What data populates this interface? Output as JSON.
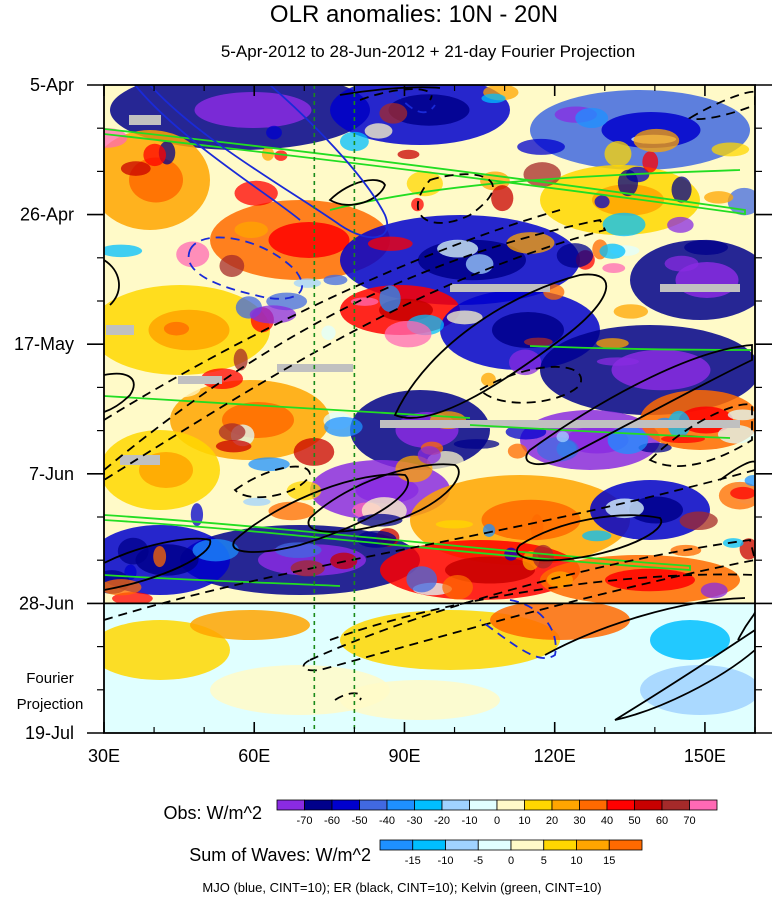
{
  "chart_data": {
    "type": "heatmap",
    "title": "OLR anomalies: 10N - 20N",
    "subtitle": "5-Apr-2012 to 28-Jun-2012 + 21-day Fourier Projection",
    "x_ticks": [
      "30E",
      "60E",
      "90E",
      "120E",
      "150E"
    ],
    "x_tick_values": [
      30,
      60,
      90,
      120,
      150
    ],
    "xlim": [
      30,
      160
    ],
    "y_ticks": [
      "5-Apr",
      "26-Apr",
      "17-May",
      "7-Jun",
      "28-Jun",
      "19-Jul"
    ],
    "y_tick_days": [
      0,
      21,
      42,
      63,
      84,
      105
    ],
    "ylim_days": [
      0,
      105
    ],
    "projection_boundary_day": 84,
    "projection_label": [
      "Fourier",
      "Projection"
    ],
    "reference_longitudes": [
      72,
      80
    ],
    "obs_colorbar": {
      "label": "Obs: W/m^2",
      "levels": [
        -70,
        -60,
        -50,
        -40,
        -30,
        -20,
        -10,
        0,
        10,
        20,
        30,
        40,
        50,
        60,
        70
      ],
      "colors": [
        "#8a2be2",
        "#00008b",
        "#0000cd",
        "#4169e1",
        "#1e90ff",
        "#00bfff",
        "#a0d2ff",
        "#e0ffff",
        "#fffac8",
        "#ffd700",
        "#ffa500",
        "#ff6a00",
        "#ff0000",
        "#c80000",
        "#a52a2a",
        "#ff69b4"
      ]
    },
    "waves_colorbar": {
      "label": "Sum of Waves: W/m^2",
      "levels": [
        -15,
        -10,
        -5,
        0,
        5,
        10,
        15
      ],
      "colors": [
        "#1e90ff",
        "#00bfff",
        "#a0d2ff",
        "#e0ffff",
        "#fffac8",
        "#ffd700",
        "#ffa500",
        "#ff6a00"
      ]
    },
    "contour_series": [
      {
        "name": "MJO",
        "color": "blue",
        "cint": 10
      },
      {
        "name": "ER",
        "color": "black",
        "cint": 10
      },
      {
        "name": "Kelvin",
        "color": "green",
        "cint": 10
      }
    ],
    "footnote": "MJO (blue, CINT=10); ER (black, CINT=10); Kelvin (green, CINT=10)"
  }
}
